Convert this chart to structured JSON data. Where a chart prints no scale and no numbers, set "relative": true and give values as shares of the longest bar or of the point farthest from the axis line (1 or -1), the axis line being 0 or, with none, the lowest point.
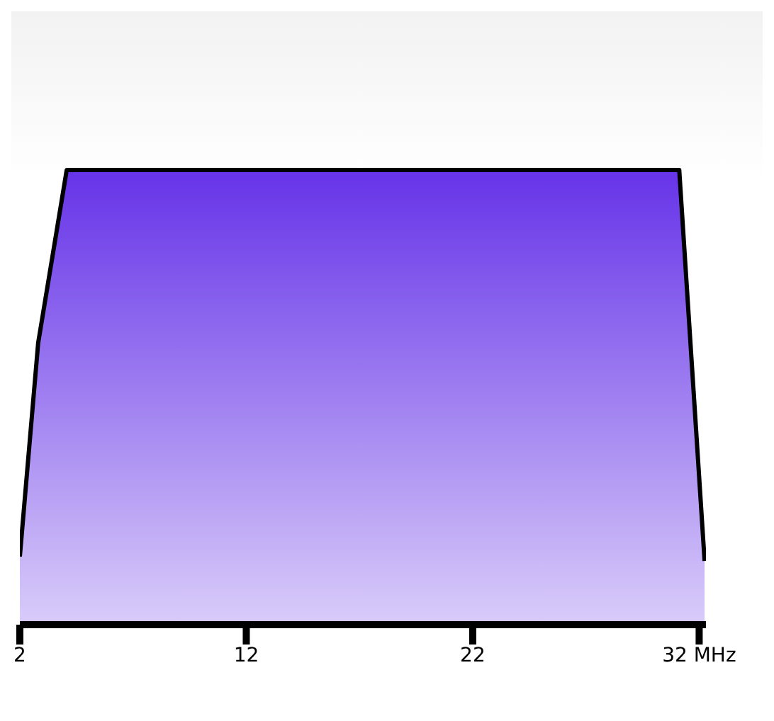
{
  "chart_data": {
    "type": "area",
    "relative": true,
    "x": [
      2,
      2.81,
      4.07,
      31.12,
      32.24
    ],
    "series": [
      {
        "color": "#6633e8",
        "values": [
          0.15,
          0.62,
          1,
          1,
          0.14
        ]
      }
    ],
    "xlim": [
      2,
      32.3
    ],
    "xticks": [
      2,
      12,
      22,
      {
        "value": 32,
        "label": "32 MHz"
      }
    ],
    "grid": false,
    "legend": false
  }
}
